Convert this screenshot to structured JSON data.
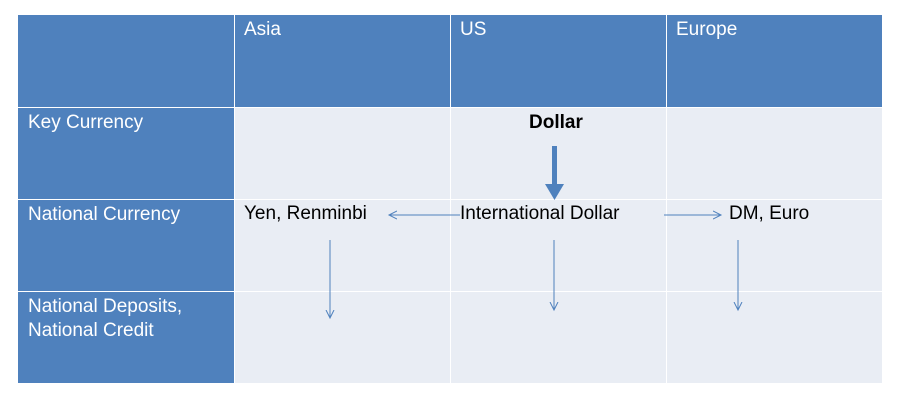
{
  "columns": {
    "asia": "Asia",
    "us": "US",
    "europe": "Europe"
  },
  "rows": {
    "key_currency": "Key Currency",
    "national_currency": "National Currency",
    "national_deposits": "National Deposits,\nNational Credit"
  },
  "cells": {
    "key_currency_us": "Dollar",
    "national_currency_asia": "Yen, Renminbi",
    "national_currency_us": "International Dollar",
    "national_currency_europe": "DM, Euro"
  },
  "colors": {
    "header_blue": "#4f81bd",
    "body_fill": "#e9edf4",
    "arrow": "#4f81bd"
  }
}
